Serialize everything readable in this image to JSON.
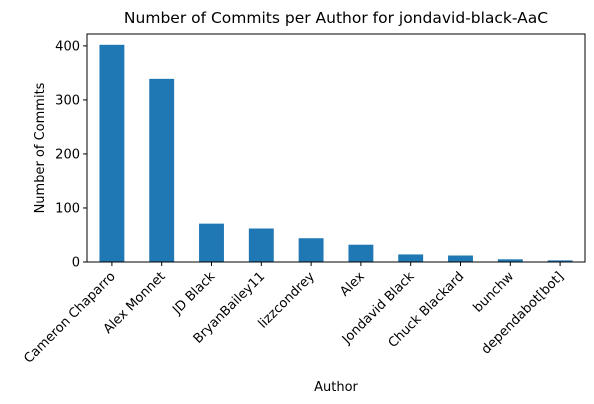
{
  "chart_data": {
    "type": "bar",
    "title": "Number of Commits per Author for jondavid-black-AaC",
    "xlabel": "Author",
    "ylabel": "Number of Commits",
    "categories": [
      "Cameron Chaparro",
      "Alex Monnet",
      "JD Black",
      "BryanBailey11",
      "lizzcondrey",
      "Alex",
      "Jondavid Black",
      "Chuck Blackard",
      "bunchw",
      "dependabot[bot]"
    ],
    "values": [
      402,
      339,
      71,
      62,
      44,
      32,
      14,
      12,
      5,
      3
    ],
    "ylim": [
      0,
      422
    ],
    "yticks": [
      "0",
      "100",
      "200",
      "300",
      "400"
    ],
    "bar_color": "#1f77b4",
    "grid": false,
    "legend": "none"
  }
}
